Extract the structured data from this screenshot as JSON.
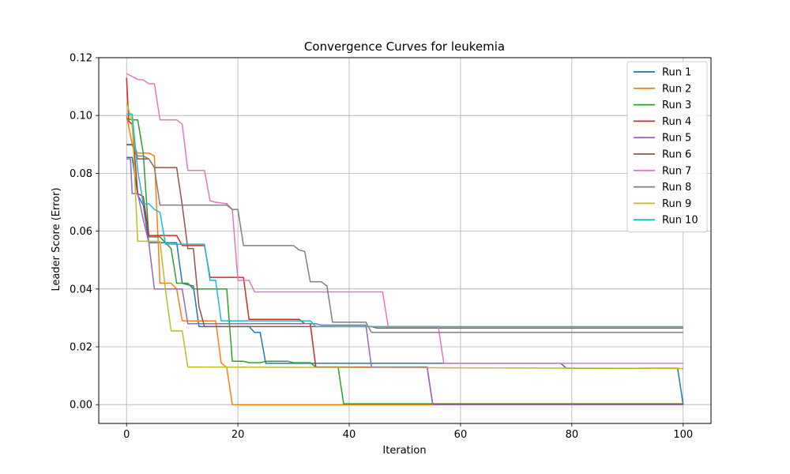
{
  "chart_data": {
    "type": "line",
    "title": "Convergence Curves for leukemia",
    "xlabel": "Iteration",
    "ylabel": "Leader Score (Error)",
    "xlim": [
      -5,
      105
    ],
    "ylim": [
      -0.0065,
      0.12
    ],
    "xticks": [
      0,
      20,
      40,
      60,
      80,
      100
    ],
    "xtick_labels": [
      "0",
      "20",
      "40",
      "60",
      "80",
      "100"
    ],
    "yticks": [
      0.0,
      0.02,
      0.04,
      0.06,
      0.08,
      0.1,
      0.12
    ],
    "ytick_labels": [
      "0.00",
      "0.02",
      "0.04",
      "0.06",
      "0.08",
      "0.10",
      "0.12"
    ],
    "grid": true,
    "legend_position": "top-right",
    "series": [
      {
        "name": "Run 1",
        "color": "#1f77b4",
        "points": [
          [
            0,
            0.0855
          ],
          [
            1,
            0.0855
          ],
          [
            2,
            0.0725
          ],
          [
            3,
            0.069
          ],
          [
            4,
            0.056
          ],
          [
            9,
            0.056
          ],
          [
            10,
            0.042
          ],
          [
            12,
            0.041
          ],
          [
            13,
            0.027
          ],
          [
            22,
            0.027
          ],
          [
            23,
            0.025
          ],
          [
            24,
            0.025
          ],
          [
            25,
            0.0143
          ],
          [
            78,
            0.0143
          ],
          [
            79,
            0.0126
          ],
          [
            99,
            0.0126
          ],
          [
            100,
            0.0
          ]
        ]
      },
      {
        "name": "Run 2",
        "color": "#ff7f0e",
        "points": [
          [
            0,
            0.1
          ],
          [
            1,
            0.09
          ],
          [
            2,
            0.087
          ],
          [
            4,
            0.087
          ],
          [
            5,
            0.086
          ],
          [
            6,
            0.042
          ],
          [
            8,
            0.042
          ],
          [
            9,
            0.04
          ],
          [
            10,
            0.029
          ],
          [
            16,
            0.029
          ],
          [
            17,
            0.0145
          ],
          [
            18,
            0.0128
          ],
          [
            19,
            0.0
          ],
          [
            100,
            0.0
          ]
        ]
      },
      {
        "name": "Run 3",
        "color": "#2ca02c",
        "points": [
          [
            0,
            0.099
          ],
          [
            1,
            0.0985
          ],
          [
            2,
            0.0985
          ],
          [
            3,
            0.087
          ],
          [
            4,
            0.058
          ],
          [
            6,
            0.058
          ],
          [
            7,
            0.056
          ],
          [
            8,
            0.054
          ],
          [
            9,
            0.042
          ],
          [
            11,
            0.042
          ],
          [
            12,
            0.04
          ],
          [
            18,
            0.04
          ],
          [
            19,
            0.015
          ],
          [
            21,
            0.015
          ],
          [
            22,
            0.0145
          ],
          [
            24,
            0.0145
          ],
          [
            25,
            0.015
          ],
          [
            29,
            0.015
          ],
          [
            30,
            0.0145
          ],
          [
            33,
            0.0145
          ],
          [
            34,
            0.013
          ],
          [
            38,
            0.013
          ],
          [
            39,
            0.0003
          ],
          [
            100,
            0.0003
          ]
        ]
      },
      {
        "name": "Run 4",
        "color": "#d62728",
        "points": [
          [
            0,
            0.113
          ],
          [
            0.4,
            0.098
          ],
          [
            1,
            0.097
          ],
          [
            2,
            0.073
          ],
          [
            3,
            0.072
          ],
          [
            4,
            0.0585
          ],
          [
            9,
            0.0585
          ],
          [
            10,
            0.055
          ],
          [
            14,
            0.055
          ],
          [
            15,
            0.044
          ],
          [
            21,
            0.044
          ],
          [
            22,
            0.0295
          ],
          [
            31,
            0.0295
          ],
          [
            32,
            0.028
          ],
          [
            33,
            0.028
          ],
          [
            34,
            0.013
          ],
          [
            54,
            0.013
          ],
          [
            55,
            0.0002
          ],
          [
            100,
            0.0002
          ]
        ]
      },
      {
        "name": "Run 5",
        "color": "#9467bd",
        "points": [
          [
            0,
            0.085
          ],
          [
            0.7,
            0.085
          ],
          [
            1,
            0.073
          ],
          [
            2,
            0.073
          ],
          [
            3,
            0.064
          ],
          [
            4,
            0.056
          ],
          [
            5,
            0.04
          ],
          [
            10,
            0.04
          ],
          [
            11,
            0.028
          ],
          [
            34,
            0.028
          ],
          [
            35,
            0.0275
          ],
          [
            43,
            0.0275
          ],
          [
            44,
            0.013
          ],
          [
            54,
            0.013
          ],
          [
            55,
            0.0
          ],
          [
            100,
            0.0
          ]
        ]
      },
      {
        "name": "Run 6",
        "color": "#8c564b",
        "points": [
          [
            0,
            0.09
          ],
          [
            1,
            0.09
          ],
          [
            2,
            0.085
          ],
          [
            4,
            0.085
          ],
          [
            5,
            0.082
          ],
          [
            9,
            0.082
          ],
          [
            10,
            0.069
          ],
          [
            11,
            0.054
          ],
          [
            12,
            0.054
          ],
          [
            13,
            0.034
          ],
          [
            14,
            0.027
          ],
          [
            44,
            0.027
          ],
          [
            45,
            0.0265
          ],
          [
            100,
            0.0265
          ]
        ]
      },
      {
        "name": "Run 7",
        "color": "#e377c2",
        "points": [
          [
            0,
            0.1145
          ],
          [
            1,
            0.1135
          ],
          [
            2,
            0.1125
          ],
          [
            3,
            0.1123
          ],
          [
            4,
            0.111
          ],
          [
            5,
            0.111
          ],
          [
            6,
            0.0985
          ],
          [
            9,
            0.0985
          ],
          [
            10,
            0.097
          ],
          [
            11,
            0.081
          ],
          [
            14,
            0.081
          ],
          [
            15,
            0.0705
          ],
          [
            16,
            0.07
          ],
          [
            18,
            0.0695
          ],
          [
            19,
            0.0675
          ],
          [
            20,
            0.043
          ],
          [
            22,
            0.043
          ],
          [
            23,
            0.039
          ],
          [
            46,
            0.039
          ],
          [
            47,
            0.027
          ],
          [
            56,
            0.027
          ],
          [
            57,
            0.0143
          ],
          [
            100,
            0.0143
          ]
        ]
      },
      {
        "name": "Run 8",
        "color": "#7f7f7f",
        "points": [
          [
            0,
            0.0898
          ],
          [
            1,
            0.0898
          ],
          [
            2,
            0.086
          ],
          [
            3,
            0.086
          ],
          [
            4,
            0.085
          ],
          [
            5,
            0.082
          ],
          [
            6,
            0.069
          ],
          [
            18,
            0.069
          ],
          [
            19,
            0.0675
          ],
          [
            20,
            0.0675
          ],
          [
            21,
            0.055
          ],
          [
            30,
            0.055
          ],
          [
            31,
            0.0535
          ],
          [
            32,
            0.053
          ],
          [
            33,
            0.0425
          ],
          [
            35,
            0.0425
          ],
          [
            36,
            0.041
          ],
          [
            37,
            0.0285
          ],
          [
            43,
            0.0285
          ],
          [
            44,
            0.025
          ],
          [
            100,
            0.025
          ]
        ]
      },
      {
        "name": "Run 9",
        "color": "#bcbd22",
        "points": [
          [
            0,
            0.1045
          ],
          [
            1,
            0.098
          ],
          [
            2,
            0.0565
          ],
          [
            6,
            0.0565
          ],
          [
            7,
            0.0395
          ],
          [
            8,
            0.0255
          ],
          [
            10,
            0.0255
          ],
          [
            11,
            0.013
          ],
          [
            100,
            0.0125
          ]
        ]
      },
      {
        "name": "Run 10",
        "color": "#17becf",
        "points": [
          [
            0,
            0.1005
          ],
          [
            1,
            0.1005
          ],
          [
            2,
            0.081
          ],
          [
            3,
            0.0695
          ],
          [
            4,
            0.0695
          ],
          [
            5,
            0.0675
          ],
          [
            6,
            0.0665
          ],
          [
            7,
            0.0555
          ],
          [
            14,
            0.0555
          ],
          [
            15,
            0.043
          ],
          [
            16,
            0.043
          ],
          [
            17,
            0.029
          ],
          [
            33,
            0.029
          ],
          [
            34,
            0.027
          ],
          [
            100,
            0.027
          ]
        ]
      }
    ]
  }
}
